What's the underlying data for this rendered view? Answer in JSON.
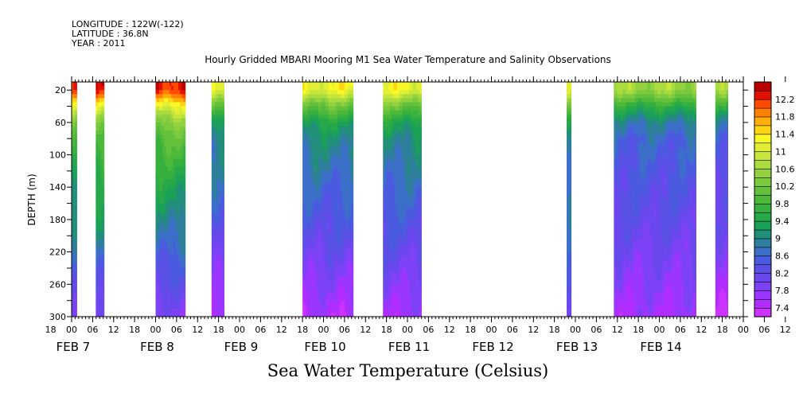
{
  "header": {
    "longitude": "LONGITUDE : 122W(-122)",
    "latitude": "LATITUDE : 36.8N",
    "year": "YEAR : 2011"
  },
  "chart_data": {
    "type": "heatmap",
    "title": "Hourly Gridded MBARI Mooring M1 Sea Water Temperature and Salinity Observations",
    "xlabel": "Sea Water Temperature (Celsius)",
    "ylabel": "DEPTH (m)",
    "y_ticks": [
      20,
      60,
      100,
      140,
      180,
      220,
      260,
      300
    ],
    "y_range": [
      10,
      300
    ],
    "y_inverted": true,
    "x_range_hours": [
      0,
      192
    ],
    "x_ticks": [
      "18",
      "00",
      "06",
      "12",
      "18",
      "00",
      "06",
      "12",
      "18",
      "00",
      "06",
      "12",
      "18",
      "00",
      "06",
      "12",
      "18",
      "00",
      "06",
      "12",
      "18",
      "00",
      "06",
      "12",
      "18",
      "00",
      "06",
      "12",
      "18",
      "00",
      "06",
      "12",
      "18",
      "00",
      "06",
      "12"
    ],
    "x_day_labels": [
      "FEB  7",
      "FEB  8",
      "FEB  9",
      "FEB 10",
      "FEB 11",
      "FEB 12",
      "FEB 13",
      "FEB 14"
    ],
    "colorbar_labels": [
      "12.2",
      "11.8",
      "11.4",
      "11",
      "10.6",
      "10.2",
      "9.8",
      "9.4",
      "9",
      "8.6",
      "8.2",
      "7.8",
      "7.4"
    ],
    "colorbar_levels": [
      7.4,
      7.6,
      7.8,
      8.0,
      8.2,
      8.4,
      8.6,
      8.8,
      9.0,
      9.2,
      9.4,
      9.6,
      9.8,
      10.0,
      10.2,
      10.4,
      10.6,
      10.8,
      11.0,
      11.2,
      11.4,
      11.6,
      11.8,
      12.0,
      12.2,
      12.4
    ],
    "colors": [
      "#cc33ff",
      "#b02cff",
      "#9a36ff",
      "#7d42f6",
      "#6b47ee",
      "#5951e6",
      "#4b5be0",
      "#3b6fc8",
      "#2d7f9b",
      "#218f79",
      "#1ba058",
      "#27a84a",
      "#37b03e",
      "#4db83a",
      "#63c03a",
      "#7bc93c",
      "#93d13f",
      "#aadb3f",
      "#c7e63a",
      "#e0ef35",
      "#f8f823",
      "#ffd414",
      "#ffae0a",
      "#ff7f00",
      "#ff4a00",
      "#e21000",
      "#b80000"
    ],
    "temperature_profile": [
      {
        "depth": 20,
        "temp": 11.9
      },
      {
        "depth": 40,
        "temp": 10.8
      },
      {
        "depth": 60,
        "temp": 10.0
      },
      {
        "depth": 80,
        "temp": 9.6
      },
      {
        "depth": 100,
        "temp": 9.4
      },
      {
        "depth": 120,
        "temp": 9.2
      },
      {
        "depth": 140,
        "temp": 9.0
      },
      {
        "depth": 160,
        "temp": 8.85
      },
      {
        "depth": 180,
        "temp": 8.65
      },
      {
        "depth": 200,
        "temp": 8.45
      },
      {
        "depth": 220,
        "temp": 8.25
      },
      {
        "depth": 240,
        "temp": 8.05
      },
      {
        "depth": 260,
        "temp": 7.85
      },
      {
        "depth": 280,
        "temp": 7.65
      },
      {
        "depth": 300,
        "temp": 7.45
      }
    ],
    "observation_periods": [
      {
        "start_h": 0.0,
        "end_h": 1.5,
        "surface_temp": 12.1,
        "bottom_temp": 7.9
      },
      {
        "start_h": 6.9,
        "end_h": 9.3,
        "surface_temp": 12.3,
        "bottom_temp": 8.0
      },
      {
        "start_h": 24.0,
        "end_h": 32.5,
        "surface_temp": 12.3,
        "bottom_temp": 7.8
      },
      {
        "start_h": 40.0,
        "end_h": 43.6,
        "surface_temp": 11.2,
        "bottom_temp": 7.5
      },
      {
        "start_h": 66.0,
        "end_h": 80.5,
        "surface_temp": 11.2,
        "bottom_temp": 7.5
      },
      {
        "start_h": 89.0,
        "end_h": 100.0,
        "surface_temp": 11.2,
        "bottom_temp": 7.6
      },
      {
        "start_h": 141.5,
        "end_h": 142.8,
        "surface_temp": 11.0,
        "bottom_temp": 8.2
      },
      {
        "start_h": 155.0,
        "end_h": 178.5,
        "surface_temp": 10.6,
        "bottom_temp": 7.6
      },
      {
        "start_h": 184.0,
        "end_h": 187.6,
        "surface_temp": 10.6,
        "bottom_temp": 7.4
      }
    ]
  }
}
